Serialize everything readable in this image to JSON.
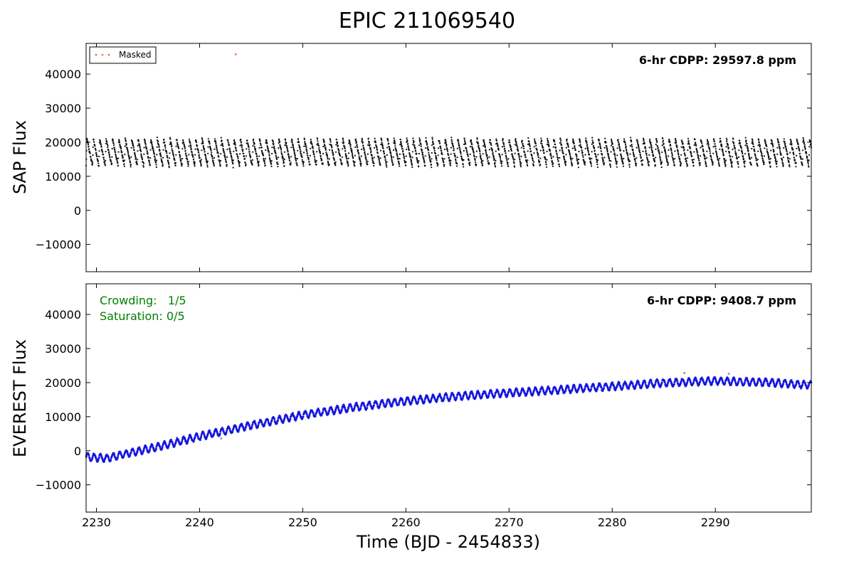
{
  "figure": {
    "title": "EPIC 211069540",
    "xlabel": "Time (BJD - 2454833)"
  },
  "colors": {
    "sap_points": "#111111",
    "everest_points": "#1515dd",
    "outlier_points": "#8c8ce8",
    "masked": "#ff5555",
    "annotation": "#008000",
    "axes": "#000000"
  },
  "chart_data": [
    {
      "type": "scatter",
      "panel": "top",
      "ylabel": "SAP Flux",
      "xlim": [
        2229,
        2299.3
      ],
      "ylim": [
        -18000,
        49000
      ],
      "x_ticks": [
        2230,
        2240,
        2250,
        2260,
        2270,
        2280,
        2290
      ],
      "y_ticks": [
        -10000,
        0,
        10000,
        20000,
        30000,
        40000
      ],
      "y_tick_labels": [
        "−10000",
        "0",
        "10000",
        "20000",
        "30000",
        "40000"
      ],
      "show_x_tick_labels": false,
      "cdpp_text": "6-hr CDPP: 29597.8 ppm",
      "legend": {
        "placement": "top-left",
        "entries": [
          "Masked"
        ]
      },
      "series": [
        {
          "name": "",
          "model": "sawtooth",
          "period_days": 0.62,
          "low_flux": 13000,
          "high_flux": 21000,
          "x_range": [
            2229,
            2299.3
          ]
        },
        {
          "name": "Masked",
          "points": [
            {
              "x": 2243.5,
              "y": 45800
            }
          ]
        }
      ]
    },
    {
      "type": "scatter",
      "panel": "bottom",
      "ylabel": "EVEREST Flux",
      "xlim": [
        2229,
        2299.3
      ],
      "ylim": [
        -18000,
        49000
      ],
      "x_ticks": [
        2230,
        2240,
        2250,
        2260,
        2270,
        2280,
        2290
      ],
      "x_tick_labels": [
        "2230",
        "2240",
        "2250",
        "2260",
        "2270",
        "2280",
        "2290"
      ],
      "y_ticks": [
        -10000,
        0,
        10000,
        20000,
        30000,
        40000
      ],
      "y_tick_labels": [
        "−10000",
        "0",
        "10000",
        "20000",
        "30000",
        "40000"
      ],
      "cdpp_text": "6-hr CDPP: 9408.7 ppm",
      "annotations": [
        "Crowding:   1/5",
        "Saturation: 0/5"
      ],
      "series": [
        {
          "name": "",
          "model": "trend_with_ripple",
          "trend": [
            {
              "x": 2229,
              "y": -1800
            },
            {
              "x": 2231,
              "y": -2200
            },
            {
              "x": 2233,
              "y": -800
            },
            {
              "x": 2236,
              "y": 1200
            },
            {
              "x": 2240,
              "y": 4200
            },
            {
              "x": 2245,
              "y": 7500
            },
            {
              "x": 2250,
              "y": 10500
            },
            {
              "x": 2255,
              "y": 12800
            },
            {
              "x": 2260,
              "y": 14600
            },
            {
              "x": 2265,
              "y": 16000
            },
            {
              "x": 2270,
              "y": 17000
            },
            {
              "x": 2275,
              "y": 17900
            },
            {
              "x": 2280,
              "y": 18900
            },
            {
              "x": 2285,
              "y": 19900
            },
            {
              "x": 2290,
              "y": 20500
            },
            {
              "x": 2295,
              "y": 20100
            },
            {
              "x": 2299.3,
              "y": 19300
            }
          ],
          "ripple_period_days": 0.62,
          "ripple_amplitude": 1000
        },
        {
          "name": "",
          "points": [
            {
              "x": 2287,
              "y": 22800
            },
            {
              "x": 2291.3,
              "y": 22600
            },
            {
              "x": 2242.1,
              "y": 3600
            }
          ]
        }
      ]
    }
  ]
}
